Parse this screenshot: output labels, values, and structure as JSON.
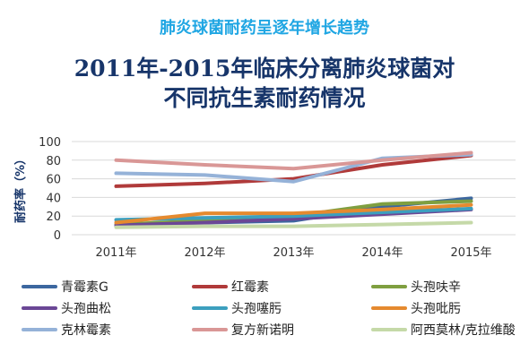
{
  "page": {
    "subtitle": "肺炎球菌耐药呈逐年增长趋势",
    "title_line1": "2011年-2015年临床分离肺炎球菌对",
    "title_line2": "不同抗生素耐药情况"
  },
  "chart_data": {
    "type": "line",
    "categories": [
      "2011年",
      "2012年",
      "2013年",
      "2014年",
      "2015年"
    ],
    "ylabel": "耐药率（%）",
    "xlabel": "",
    "ylim": [
      0,
      100
    ],
    "yticks": [
      "0",
      "20",
      "40",
      "60",
      "80",
      "100"
    ],
    "grid": true,
    "legend_position": "bottom",
    "series": [
      {
        "name": "青霉素G",
        "color": "#3c679f",
        "values": [
          10,
          13,
          15,
          30,
          39
        ]
      },
      {
        "name": "红霉素",
        "color": "#b03a3a",
        "values": [
          52,
          55,
          60,
          75,
          85
        ]
      },
      {
        "name": "头孢呋辛",
        "color": "#7f9f40",
        "values": [
          11,
          15,
          20,
          33,
          36
        ]
      },
      {
        "name": "头孢曲松",
        "color": "#6b4796",
        "values": [
          10,
          13,
          17,
          22,
          27
        ]
      },
      {
        "name": "头孢噻肟",
        "color": "#3c9fbe",
        "values": [
          16,
          18,
          20,
          24,
          28
        ]
      },
      {
        "name": "头孢吡肟",
        "color": "#e58a2f",
        "values": [
          13,
          23,
          23,
          27,
          32
        ]
      },
      {
        "name": "克林霉素",
        "color": "#95b2d8",
        "values": [
          66,
          64,
          57,
          82,
          86
        ]
      },
      {
        "name": "复方新诺明",
        "color": "#d99796",
        "values": [
          80,
          75,
          71,
          80,
          88
        ]
      },
      {
        "name": "阿西莫林/克拉维酸",
        "color": "#c5d9a8",
        "values": [
          8,
          9,
          9,
          11,
          13
        ]
      }
    ]
  }
}
